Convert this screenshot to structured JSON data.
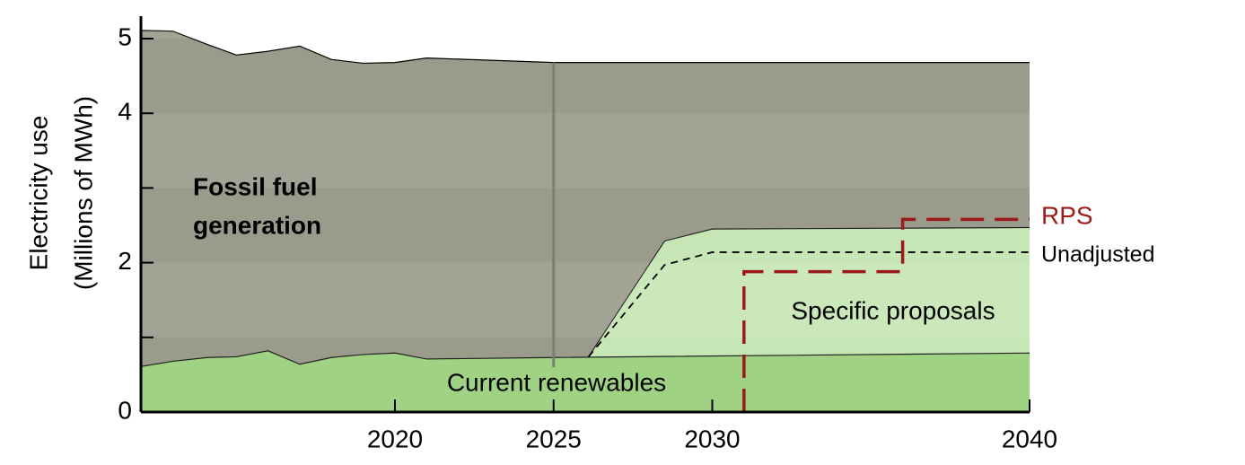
{
  "chart_data": {
    "type": "area",
    "y_label": [
      "Electricity use",
      "(Millions of MWh)"
    ],
    "xlim": [
      2012,
      2040
    ],
    "ylim": [
      0,
      5.3
    ],
    "xticks": [
      2020,
      2025,
      2030,
      2040
    ],
    "yticks": [
      0,
      2,
      4,
      5
    ],
    "minor_yticks": [
      1,
      3
    ],
    "bands": true,
    "vline_x": 2025,
    "series": [
      {
        "name": [
          "Fossil fuel",
          "generation"
        ],
        "kind": "area",
        "color": "#9b9b8c",
        "x": [
          2012,
          2013,
          2014.1,
          2015,
          2016,
          2017,
          2018,
          2019,
          2020,
          2021,
          2025,
          2040
        ],
        "values": [
          5.11,
          5.1,
          4.92,
          4.78,
          4.83,
          4.9,
          4.72,
          4.67,
          4.68,
          4.74,
          4.68,
          4.68
        ]
      },
      {
        "name": "Specific proposals",
        "kind": "area",
        "color": "#c6e6b5",
        "x": [
          2026.1,
          2028.5,
          2030,
          2040
        ],
        "values": [
          0.74,
          2.29,
          2.45,
          2.47
        ]
      },
      {
        "name": "Current renewables",
        "kind": "area",
        "color": "#9fd383",
        "x": [
          2012,
          2013,
          2014.1,
          2015,
          2016,
          2017,
          2018,
          2019,
          2020,
          2021,
          2025,
          2040
        ],
        "values": [
          0.61,
          0.68,
          0.73,
          0.74,
          0.82,
          0.64,
          0.73,
          0.77,
          0.79,
          0.71,
          0.73,
          0.79
        ]
      },
      {
        "name": "Unadjusted",
        "kind": "dash",
        "color": "#000000",
        "x": [
          2026.1,
          2028.5,
          2030,
          2040
        ],
        "values": [
          0.74,
          1.97,
          2.14,
          2.14
        ]
      },
      {
        "name": "RPS",
        "kind": "step",
        "color": "#9b1b1b",
        "x": [
          2031,
          2031,
          2036,
          2036,
          2040
        ],
        "values": [
          0,
          1.88,
          1.88,
          2.58,
          2.58
        ]
      }
    ]
  }
}
